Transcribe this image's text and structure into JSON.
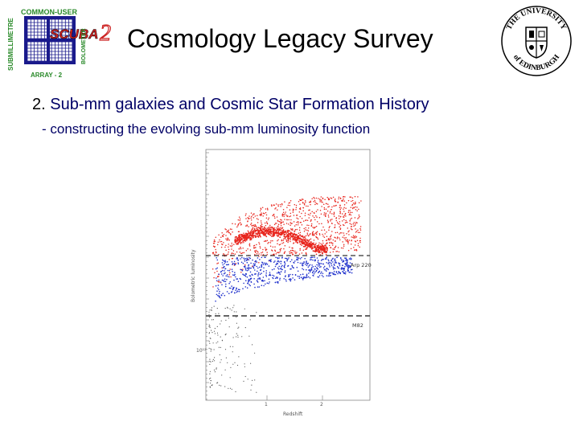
{
  "header": {
    "title": "Cosmology Legacy Survey",
    "logo_left": {
      "top_text": "COMMON-USER",
      "left_text": "SUBMILLIMETRE",
      "right_text": "BOLOMETER",
      "bottom_text": "ARRAY - 2",
      "brand": "SCUBA",
      "brand_number": "2"
    },
    "logo_right": {
      "ring_text": "THE UNIVERSITY of EDINBURGH"
    }
  },
  "content": {
    "point_number": "2.",
    "point_text": "Sub-mm galaxies and Cosmic Star Formation History",
    "sub_point": "- constructing the evolving sub-mm luminosity function"
  },
  "plot": {
    "xlabel": "Redshift",
    "ylabel": "Bolometric luminosity",
    "x_ticks": [
      "1",
      "2"
    ],
    "y_tick": "10¹²",
    "line_labels": [
      "Arp 220",
      "M82"
    ],
    "colors": {
      "high": "#e8261e",
      "low": "#2233cc",
      "faint": "#555555"
    }
  }
}
